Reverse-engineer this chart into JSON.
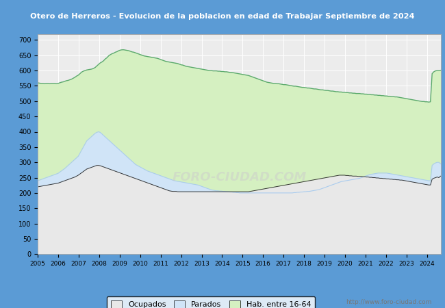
{
  "title": "Otero de Herreros - Evolucion de la poblacion en edad de Trabajar Septiembre de 2024",
  "title_bg": "#5b9bd5",
  "title_color": "white",
  "ylim": [
    0,
    720
  ],
  "yticks": [
    0,
    50,
    100,
    150,
    200,
    250,
    300,
    350,
    400,
    450,
    500,
    550,
    600,
    650,
    700
  ],
  "legend_labels": [
    "Ocupados",
    "Parados",
    "Hab. entre 16-64"
  ],
  "url_text": "http://www.foro-ciudad.com",
  "bg_plot": "#ececec",
  "hab_color": "#d5f0c1",
  "hab_edge": "#5aaa6a",
  "parados_color": "#d0e4f7",
  "parados_edge": "#aaccee",
  "ocupados_color": "#e8e8e8",
  "ocupados_edge": "#999999",
  "line_color": "#333333",
  "years_x": [
    2005,
    2006,
    2007,
    2008,
    2009,
    2010,
    2011,
    2012,
    2013,
    2014,
    2015,
    2016,
    2017,
    2018,
    2019,
    2020,
    2021,
    2022,
    2023,
    2024
  ],
  "hab_data": [
    560,
    559,
    558,
    558,
    557,
    558,
    558,
    557,
    558,
    558,
    558,
    557,
    558,
    560,
    562,
    563,
    565,
    567,
    568,
    570,
    572,
    575,
    578,
    582,
    585,
    590,
    595,
    598,
    600,
    602,
    603,
    604,
    605,
    607,
    610,
    615,
    620,
    625,
    628,
    632,
    638,
    642,
    648,
    652,
    655,
    657,
    660,
    662,
    665,
    667,
    668,
    668,
    667,
    666,
    665,
    663,
    661,
    660,
    658,
    656,
    654,
    652,
    650,
    648,
    647,
    646,
    645,
    644,
    643,
    642,
    641,
    640,
    638,
    636,
    634,
    632,
    630,
    629,
    628,
    627,
    626,
    625,
    624,
    623,
    621,
    619,
    618,
    616,
    614,
    613,
    612,
    611,
    610,
    609,
    608,
    607,
    606,
    605,
    604,
    603,
    602,
    601,
    600,
    600,
    599,
    599,
    599,
    598,
    598,
    597,
    597,
    596,
    596,
    595,
    594,
    594,
    593,
    592,
    591,
    590,
    589,
    588,
    587,
    586,
    585,
    584,
    582,
    580,
    578,
    576,
    574,
    572,
    570,
    568,
    566,
    564,
    562,
    561,
    560,
    559,
    558,
    558,
    557,
    557,
    556,
    555,
    554,
    554,
    553,
    552,
    551,
    550,
    549,
    549,
    548,
    547,
    546,
    545,
    545,
    544,
    543,
    543,
    542,
    541,
    540,
    540,
    539,
    538,
    537,
    537,
    536,
    535,
    535,
    534,
    533,
    533,
    532,
    531,
    531,
    530,
    530,
    529,
    529,
    528,
    528,
    527,
    527,
    526,
    526,
    525,
    525,
    525,
    524,
    524,
    523,
    523,
    522,
    522,
    521,
    521,
    520,
    520,
    519,
    519,
    518,
    518,
    517,
    517,
    516,
    516,
    515,
    515,
    514,
    514,
    513,
    512,
    511,
    510,
    509,
    508,
    507,
    506,
    505,
    504,
    503,
    502,
    501,
    500,
    499,
    499,
    498,
    498,
    497,
    498,
    590,
    596,
    599,
    600,
    600,
    601
  ],
  "parados_data": [
    240,
    242,
    244,
    246,
    248,
    250,
    252,
    254,
    256,
    258,
    260,
    262,
    264,
    268,
    272,
    276,
    280,
    285,
    290,
    295,
    300,
    305,
    310,
    315,
    320,
    330,
    340,
    350,
    360,
    370,
    375,
    380,
    385,
    390,
    395,
    398,
    400,
    398,
    393,
    388,
    383,
    378,
    373,
    368,
    363,
    358,
    353,
    348,
    343,
    338,
    333,
    328,
    323,
    318,
    313,
    308,
    303,
    298,
    293,
    290,
    287,
    284,
    281,
    278,
    275,
    272,
    270,
    268,
    266,
    264,
    262,
    260,
    258,
    256,
    254,
    252,
    250,
    248,
    246,
    244,
    242,
    240,
    239,
    238,
    237,
    236,
    235,
    234,
    233,
    232,
    231,
    230,
    229,
    228,
    227,
    226,
    224,
    222,
    220,
    218,
    216,
    214,
    212,
    210,
    209,
    208,
    207,
    207,
    206,
    206,
    205,
    205,
    204,
    204,
    203,
    203,
    202,
    202,
    201,
    201,
    200,
    200,
    200,
    200,
    200,
    200,
    200,
    200,
    200,
    200,
    200,
    200,
    200,
    200,
    200,
    200,
    200,
    200,
    200,
    200,
    200,
    200,
    200,
    200,
    200,
    200,
    200,
    200,
    200,
    200,
    200,
    200,
    201,
    201,
    202,
    202,
    203,
    203,
    204,
    204,
    205,
    205,
    206,
    207,
    208,
    209,
    210,
    211,
    213,
    215,
    217,
    219,
    221,
    223,
    225,
    227,
    229,
    231,
    233,
    235,
    237,
    238,
    239,
    240,
    241,
    242,
    243,
    244,
    245,
    246,
    247,
    248,
    250,
    252,
    254,
    256,
    258,
    260,
    261,
    262,
    263,
    264,
    265,
    265,
    265,
    265,
    265,
    265,
    264,
    263,
    262,
    261,
    260,
    259,
    258,
    257,
    256,
    255,
    254,
    253,
    252,
    251,
    250,
    249,
    248,
    247,
    246,
    245,
    244,
    243,
    242,
    241,
    240,
    240,
    290,
    295,
    298,
    300,
    300,
    295
  ],
  "ocupados_data": [
    220,
    221,
    222,
    223,
    224,
    225,
    226,
    227,
    228,
    229,
    230,
    231,
    232,
    234,
    236,
    238,
    240,
    242,
    244,
    246,
    248,
    250,
    252,
    255,
    258,
    262,
    266,
    270,
    274,
    278,
    280,
    282,
    284,
    286,
    288,
    290,
    290,
    289,
    287,
    285,
    283,
    281,
    279,
    277,
    275,
    273,
    271,
    269,
    267,
    265,
    263,
    261,
    259,
    257,
    255,
    253,
    251,
    249,
    247,
    245,
    243,
    241,
    239,
    237,
    235,
    233,
    231,
    229,
    227,
    225,
    223,
    221,
    219,
    217,
    215,
    213,
    211,
    209,
    207,
    206,
    205,
    205,
    205,
    204,
    204,
    204,
    204,
    204,
    204,
    204,
    204,
    204,
    204,
    204,
    204,
    204,
    204,
    204,
    204,
    204,
    204,
    204,
    204,
    204,
    204,
    204,
    204,
    204,
    204,
    204,
    204,
    204,
    204,
    204,
    204,
    204,
    204,
    204,
    204,
    204,
    204,
    204,
    204,
    204,
    204,
    204,
    205,
    206,
    207,
    208,
    209,
    210,
    211,
    212,
    213,
    214,
    215,
    216,
    217,
    218,
    219,
    220,
    221,
    222,
    223,
    224,
    225,
    226,
    227,
    228,
    229,
    230,
    231,
    232,
    233,
    234,
    235,
    236,
    237,
    238,
    239,
    240,
    241,
    242,
    243,
    244,
    245,
    246,
    247,
    248,
    249,
    250,
    251,
    252,
    253,
    254,
    255,
    256,
    257,
    258,
    258,
    258,
    258,
    257,
    257,
    256,
    256,
    255,
    255,
    255,
    254,
    254,
    254,
    253,
    253,
    252,
    252,
    251,
    251,
    250,
    250,
    249,
    249,
    248,
    248,
    247,
    247,
    246,
    246,
    245,
    245,
    244,
    244,
    243,
    243,
    242,
    242,
    241,
    240,
    239,
    238,
    237,
    236,
    235,
    234,
    233,
    232,
    231,
    230,
    229,
    228,
    227,
    226,
    226,
    245,
    248,
    250,
    252,
    250,
    255
  ]
}
